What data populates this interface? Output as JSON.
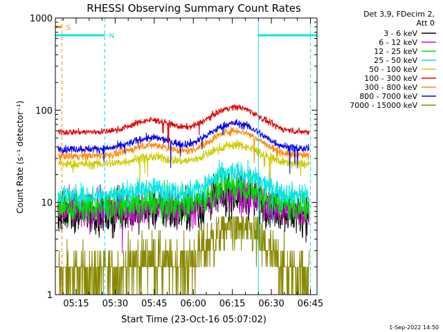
{
  "chart_data": {
    "type": "line",
    "title": "RHESSI Observing Summary Count Rates",
    "xlabel": "Start Time (23-Oct-16 05:07:02)",
    "ylabel": "Count Rate (s⁻¹ detector⁻¹)",
    "y_scale": "log",
    "ylim": [
      1,
      1000
    ],
    "xlim_minutes_after_start": [
      0,
      100.5
    ],
    "y_tick_labels": [
      "1",
      "10",
      "100",
      "1000"
    ],
    "x_ticks": [
      {
        "minutes": 7.97,
        "label": "05:15"
      },
      {
        "minutes": 22.97,
        "label": "05:30"
      },
      {
        "minutes": 37.97,
        "label": "05:45"
      },
      {
        "minutes": 52.97,
        "label": "06:00"
      },
      {
        "minutes": 67.97,
        "label": "06:15"
      },
      {
        "minutes": 82.97,
        "label": "06:30"
      },
      {
        "minutes": 97.97,
        "label": "06:45"
      }
    ],
    "legend_header": [
      "Det 3,9, FDecim 2,",
      "Att 0"
    ],
    "legend_position": "right",
    "series": [
      {
        "name": "3 - 6 keV",
        "color": "#000000",
        "base": 7.5,
        "peak1": 8.5,
        "peak2": 12,
        "noise": 0.25
      },
      {
        "name": "6 - 12 keV",
        "color": "#cc00cc",
        "base": 8,
        "peak1": 9,
        "peak2": 13,
        "noise": 0.22
      },
      {
        "name": "12 - 25 keV",
        "color": "#00dd00",
        "base": 9,
        "peak1": 10,
        "peak2": 15,
        "noise": 0.2
      },
      {
        "name": "25 - 50 keV",
        "color": "#00e5e5",
        "base": 12,
        "peak1": 14,
        "peak2": 21,
        "noise": 0.14
      },
      {
        "name": "50 - 100 keV",
        "color": "#cccc00",
        "base": 26,
        "peak1": 31,
        "peak2": 42,
        "noise": 0.06
      },
      {
        "name": "100 - 300 keV",
        "color": "#dd0000",
        "base": 58,
        "peak1": 78,
        "peak2": 108,
        "noise": 0.04
      },
      {
        "name": "300 - 800 keV",
        "color": "#ff8800",
        "base": 32,
        "peak1": 42,
        "peak2": 60,
        "noise": 0.05
      },
      {
        "name": "800 - 7000 keV",
        "color": "#0000ee",
        "base": 38,
        "peak1": 50,
        "peak2": 72,
        "noise": 0.05
      },
      {
        "name": "7000 - 15000 keV",
        "color": "#888800",
        "base": 1.6,
        "peak1": 2.3,
        "peak2": 5.5,
        "noise": 0.35
      }
    ],
    "vertical_markers": [
      {
        "minutes": 0.0,
        "style": "solid",
        "color": "#00e5e5"
      },
      {
        "minutes": 2.5,
        "style": "dashed",
        "color": "#ff8800"
      },
      {
        "minutes": 19.0,
        "style": "dashed",
        "color": "#00e5e5"
      },
      {
        "minutes": 78.0,
        "style": "solid",
        "color": "#00e5e5"
      },
      {
        "minutes": 98.0,
        "style": "dashed",
        "color": "#00e5e5"
      }
    ],
    "flag_bars": [
      {
        "label": "S",
        "color": "#ff8800",
        "y": 800,
        "x_from": 0,
        "x_to": 2.5
      },
      {
        "label": "N",
        "color": "#00e5e5",
        "y": 650,
        "x_from": 0,
        "x_to": 19.0
      },
      {
        "label": "",
        "color": "#00e5e5",
        "y": 650,
        "x_from": 78.0,
        "x_to": 100.5
      }
    ],
    "data_gap_minutes": [
      19.0,
      78.0
    ],
    "grid": false
  },
  "footer": {
    "timestamp": "1-Sep-2022 14:50"
  }
}
